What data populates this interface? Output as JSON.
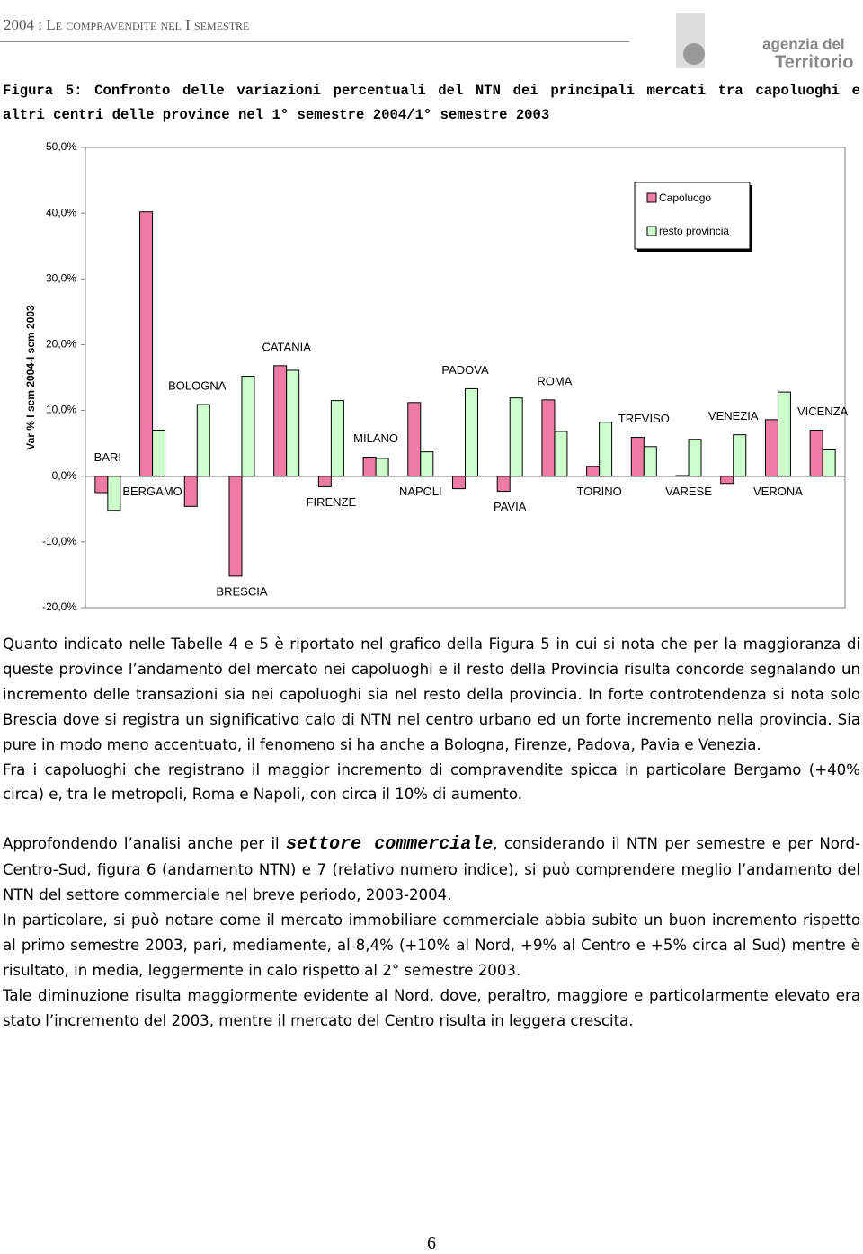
{
  "header": {
    "title": "2004 : Le compravendite nel I semestre",
    "logo_top": "agenzia del",
    "logo_bottom": "Territorio"
  },
  "caption": "Figura 5: Confronto delle variazioni percentuali del NTN dei principali mercati tra capoluoghi e altri centri delle province nel 1° semestre 2004/1° semestre 2003",
  "chart_data": {
    "type": "bar",
    "y_label": "Var % I sem 2004-I sem 2003",
    "categories": [
      "BARI",
      "BERGAMO",
      "BOLOGNA",
      "BRESCIA",
      "CATANIA",
      "FIRENZE",
      "MILANO",
      "NAPOLI",
      "PADOVA",
      "PAVIA",
      "ROMA",
      "TORINO",
      "TREVISO",
      "VARESE",
      "VENEZIA",
      "VERONA",
      "VICENZA"
    ],
    "series": [
      {
        "name": "Capoluogo",
        "color": "#ee7ba4",
        "values": [
          -2.5,
          40.2,
          -4.6,
          -15.2,
          16.8,
          -1.6,
          2.9,
          11.2,
          -1.9,
          -2.3,
          11.6,
          1.5,
          5.9,
          0.1,
          -1.1,
          8.6,
          7.0
        ]
      },
      {
        "name": "resto provincia",
        "color": "#ccffcc",
        "values": [
          -5.2,
          7.0,
          10.9,
          15.2,
          16.1,
          11.5,
          2.7,
          3.7,
          13.3,
          11.9,
          6.8,
          8.2,
          4.5,
          5.6,
          6.3,
          12.8,
          4.0
        ]
      }
    ],
    "ylim": [
      -20,
      50
    ],
    "yticks": [
      {
        "value": -20,
        "label": "-20,0%"
      },
      {
        "value": -10,
        "label": "-10,0%"
      },
      {
        "value": 0,
        "label": "0,0%"
      },
      {
        "value": 10,
        "label": "10,0%"
      },
      {
        "value": 20,
        "label": "20,0%"
      },
      {
        "value": 30,
        "label": "30,0%"
      },
      {
        "value": 40,
        "label": "40,0%"
      },
      {
        "value": 50,
        "label": "50,0%"
      }
    ],
    "grid": false,
    "legend": "upper right"
  },
  "body": [
    [
      "Quanto indicato nelle Tabelle 4 e 5 è riportato nel grafico della Figura 5 in cui si nota che per la maggioranza di queste province l’andamento del mercato nei capoluoghi e il resto della Provincia risulta concorde segnalando un incremento delle transazioni sia nei capoluoghi sia nel resto della provincia. In forte controtendenza si nota solo Brescia dove si registra un significativo calo di NTN nel centro urbano ed un forte incremento nella provincia. Sia pure in modo meno accentuato, il fenomeno si ha anche a Bologna, Firenze, Padova, Pavia e Venezia."
    ],
    [
      "Fra i capoluoghi che registrano il maggior incremento di compravendite spicca in particolare Bergamo (+40% circa) e, tra le metropoli, Roma e Napoli, con circa il 10% di aumento."
    ],
    [
      "Approfondendo l’analisi anche per il ",
      "settore commerciale",
      ", considerando il NTN per semestre e per Nord-Centro-Sud, figura 6 (andamento NTN) e 7 (relativo numero indice), si può comprendere meglio l’andamento del NTN del settore commerciale nel breve periodo, 2003-2004."
    ],
    [
      "In particolare, si può notare come il mercato immobiliare commerciale abbia subito un buon incremento rispetto al primo semestre 2003, pari, mediamente, al 8,4% (+10% al Nord, +9% al Centro e +5% circa al Sud) mentre è risultato, in media, leggermente in calo rispetto al 2° semestre 2003."
    ],
    [
      "Tale diminuzione risulta maggiormente evidente al Nord, dove, peraltro, maggiore e particolarmente elevato era stato l’incremento del 2003, mentre il mercato del Centro risulta in leggera crescita."
    ]
  ],
  "page_number": "6"
}
